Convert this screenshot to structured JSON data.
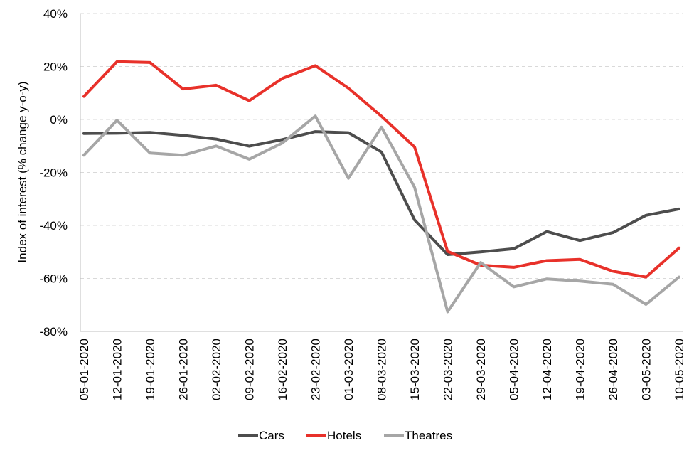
{
  "chart_data": {
    "type": "line",
    "title": "",
    "xlabel": "",
    "ylabel": "Index of interest (% change y-o-y)",
    "ylim": [
      -80,
      40
    ],
    "yticks": [
      40,
      20,
      0,
      -20,
      -40,
      -60,
      -80
    ],
    "ytick_labels": [
      "40%",
      "20%",
      "0%",
      "-20%",
      "-40%",
      "-60%",
      "-80%"
    ],
    "grid": "horizontal dashed",
    "legend_position": "bottom",
    "categories": [
      "05-01-2020",
      "12-01-2020",
      "19-01-2020",
      "26-01-2020",
      "02-02-2020",
      "09-02-2020",
      "16-02-2020",
      "23-02-2020",
      "01-03-2020",
      "08-03-2020",
      "15-03-2020",
      "22-03-2020",
      "29-03-2020",
      "05-04-2020",
      "12-04-2020",
      "19-04-2020",
      "26-04-2020",
      "03-05-2020",
      "10-05-2020"
    ],
    "series": [
      {
        "name": "Cars",
        "color": "#4d4d4d",
        "values": [
          -5.3,
          -5.2,
          -4.9,
          -6.0,
          -7.4,
          -10.1,
          -7.6,
          -4.6,
          -5.0,
          -12.3,
          -37.9,
          -51.0,
          -50.0,
          -48.8,
          -42.3,
          -45.7,
          -42.7,
          -36.2,
          -33.8
        ]
      },
      {
        "name": "Hotels",
        "color": "#e8312a",
        "values": [
          8.7,
          21.8,
          21.5,
          11.5,
          12.9,
          7.1,
          15.5,
          20.3,
          11.8,
          1.2,
          -10.4,
          -49.8,
          -55.0,
          -55.8,
          -53.3,
          -52.8,
          -57.3,
          -59.5,
          -48.5
        ]
      },
      {
        "name": "Theatres",
        "color": "#a6a6a6",
        "values": [
          -13.5,
          -0.3,
          -12.7,
          -13.5,
          -10.0,
          -15.0,
          -8.9,
          1.3,
          -22.2,
          -2.9,
          -25.6,
          -72.6,
          -54.0,
          -63.2,
          -60.2,
          -61.0,
          -62.2,
          -69.8,
          -59.5
        ]
      }
    ]
  }
}
